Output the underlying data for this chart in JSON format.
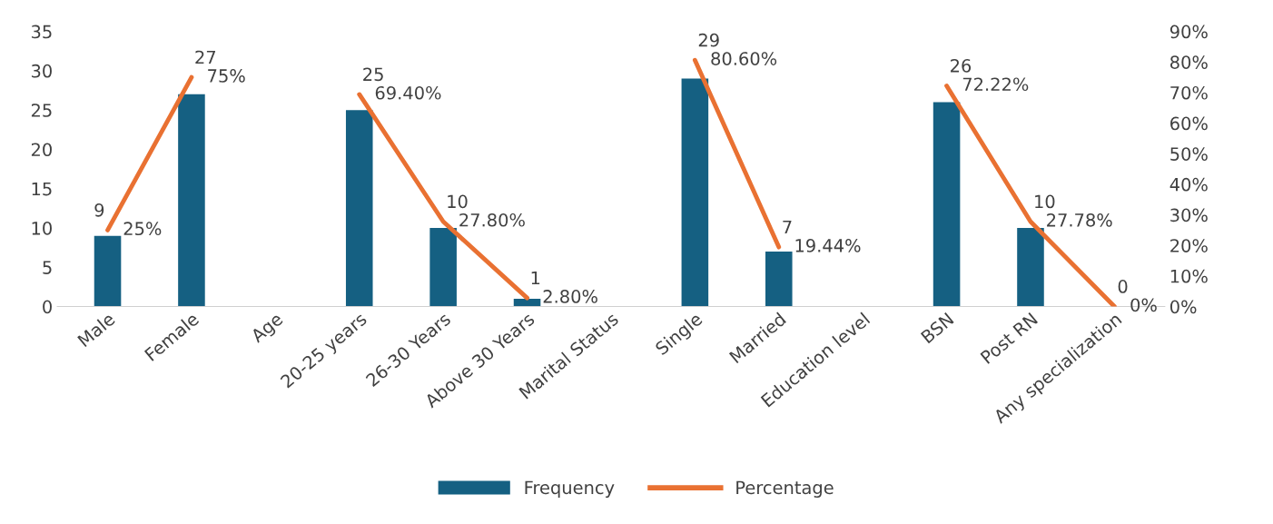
{
  "chart_data": {
    "type": "bar",
    "categories": [
      "Male",
      "Female",
      "Age",
      "20-25 years",
      "26-30 Years",
      "Above 30 Years",
      "Marital Status",
      "Single",
      "Married",
      "Education level",
      "BSN",
      "Post RN",
      "Any specialization"
    ],
    "series": [
      {
        "name": "Frequency",
        "type": "bar",
        "color": "#156082",
        "values": [
          9,
          27,
          null,
          25,
          10,
          1,
          null,
          29,
          7,
          null,
          26,
          10,
          0
        ],
        "value_labels": [
          "9",
          "27",
          null,
          "25",
          "10",
          "1",
          null,
          "29",
          "7",
          null,
          "26",
          "10",
          "0"
        ]
      },
      {
        "name": "Percentage",
        "type": "line",
        "axis": "y2",
        "color": "#e97132",
        "values": [
          25,
          75,
          null,
          69.4,
          27.8,
          2.8,
          null,
          80.6,
          19.44,
          null,
          72.22,
          27.78,
          0
        ],
        "value_labels": [
          "25%",
          "75%",
          null,
          "69.40%",
          "27.80%",
          "2.80%",
          null,
          "80.60%",
          "19.44%",
          null,
          "72.22%",
          "27.78%",
          "0%"
        ]
      }
    ],
    "ylim": [
      0,
      35
    ],
    "yticks": [
      0,
      5,
      10,
      15,
      20,
      25,
      30,
      35
    ],
    "y2lim": [
      0,
      90
    ],
    "y2ticks": [
      {
        "value": 0,
        "label": "0%"
      },
      {
        "value": 10,
        "label": "10%"
      },
      {
        "value": 20,
        "label": "20%"
      },
      {
        "value": 30,
        "label": "30%"
      },
      {
        "value": 40,
        "label": "40%"
      },
      {
        "value": 50,
        "label": "50%"
      },
      {
        "value": 60,
        "label": "60%"
      },
      {
        "value": 70,
        "label": "70%"
      },
      {
        "value": 80,
        "label": "80%"
      },
      {
        "value": 90,
        "label": "90%"
      }
    ],
    "legend": "bottom",
    "marker": "none",
    "line_style": "solid",
    "grid": false
  }
}
